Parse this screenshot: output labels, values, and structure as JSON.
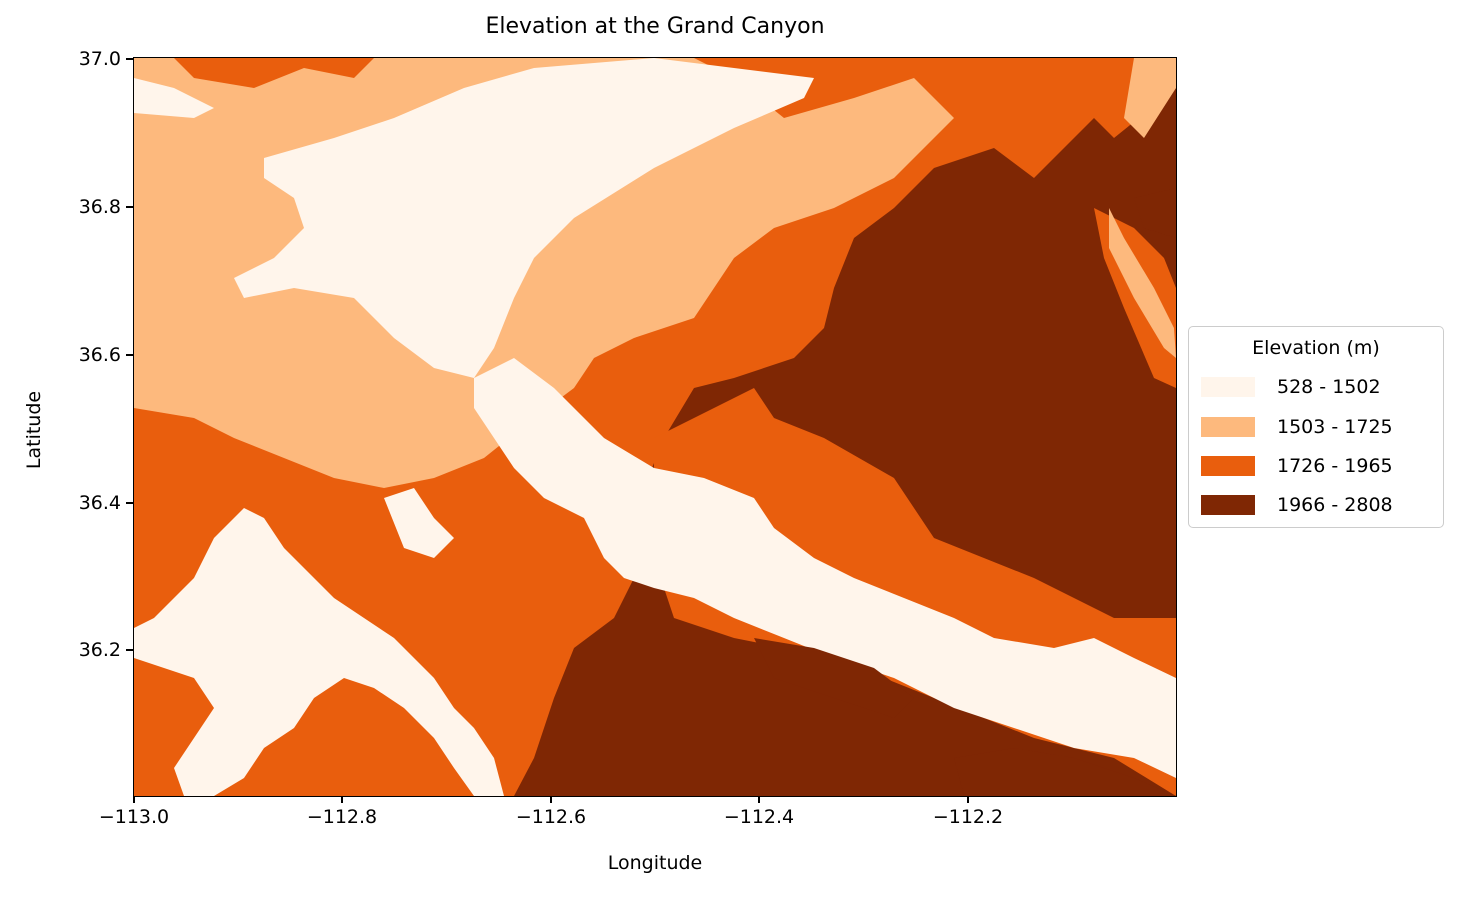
{
  "chart_data": {
    "type": "heatmap",
    "title": "Elevation at the Grand Canyon",
    "xlabel": "Longitude",
    "ylabel": "Latitude",
    "xlim": [
      -113.0,
      -112.0
    ],
    "ylim": [
      36.0,
      37.0
    ],
    "x_ticks": [
      "−113.0",
      "−112.8",
      "−112.6",
      "−112.4",
      "−112.2"
    ],
    "y_ticks": [
      "37.0",
      "36.8",
      "36.6",
      "36.4",
      "36.2"
    ],
    "legend": {
      "title": "Elevation (m)",
      "placement": "outside-right",
      "entries": [
        {
          "label": "528 - 1502",
          "color": "#fff5eb"
        },
        {
          "label": "1503 - 1725",
          "color": "#fdb97d"
        },
        {
          "label": "1726 - 1965",
          "color": "#e95e0d"
        },
        {
          "label": "1966 - 2808",
          "color": "#7f2704"
        }
      ]
    },
    "grid": false
  }
}
